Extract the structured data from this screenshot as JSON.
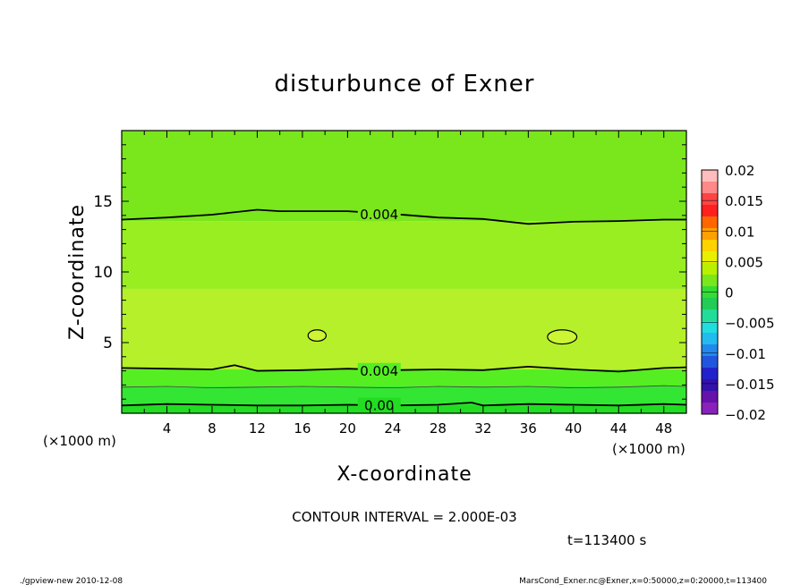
{
  "chart_data": {
    "type": "heatmap",
    "title": "disturbunce of Exner",
    "xlabel": "X-coordinate",
    "ylabel": "Z-coordinate",
    "x_unit": "(×1000 m)",
    "x_unit_right": "(×1000 m)",
    "xlim": [
      0,
      50
    ],
    "ylim": [
      0,
      20
    ],
    "x_ticks": [
      4,
      8,
      12,
      16,
      20,
      24,
      28,
      32,
      36,
      40,
      44,
      48
    ],
    "y_ticks": [
      5,
      10,
      15
    ],
    "z_bands": [
      {
        "z0": 0.0,
        "z1": 0.6,
        "value_range": [
          0.0,
          0.0025
        ],
        "color": "#22dd22"
      },
      {
        "z0": 0.6,
        "z1": 1.9,
        "value_range": [
          0.0025,
          0.003
        ],
        "color": "#33e633"
      },
      {
        "z0": 1.9,
        "z1": 3.1,
        "value_range": [
          0.003,
          0.004
        ],
        "color": "#55ee22"
      },
      {
        "z0": 3.1,
        "z1": 8.8,
        "value_range": [
          0.004,
          0.005
        ],
        "color": "#b5f02a"
      },
      {
        "z0": 8.8,
        "z1": 13.6,
        "value_range": [
          0.004,
          0.005
        ],
        "color": "#99ee22"
      },
      {
        "z0": 13.6,
        "z1": 20.0,
        "value_range": [
          0.003,
          0.004
        ],
        "color": "#7ae61c"
      }
    ],
    "contours": [
      {
        "label": "0.004",
        "level": 0.004,
        "x": [
          0,
          4,
          8,
          12,
          14,
          16,
          20,
          24,
          28,
          32,
          36,
          40,
          44,
          48,
          50
        ],
        "z": [
          13.7,
          13.85,
          14.05,
          14.4,
          14.3,
          14.3,
          14.3,
          14.1,
          13.85,
          13.75,
          13.4,
          13.55,
          13.6,
          13.7,
          13.7
        ]
      },
      {
        "label": "0.004",
        "level": 0.004,
        "x": [
          0,
          4,
          8,
          10,
          12,
          16,
          20,
          24,
          28,
          32,
          36,
          40,
          44,
          48,
          50
        ],
        "z": [
          3.2,
          3.15,
          3.1,
          3.4,
          3.0,
          3.05,
          3.15,
          3.05,
          3.1,
          3.05,
          3.3,
          3.1,
          2.95,
          3.2,
          3.25
        ]
      },
      {
        "label": "0.00",
        "level": 0.002,
        "x": [
          0,
          4,
          8,
          12,
          16,
          20,
          24,
          28,
          31,
          32,
          36,
          40,
          44,
          48,
          50
        ],
        "z": [
          0.55,
          0.65,
          0.6,
          0.55,
          0.55,
          0.6,
          0.55,
          0.6,
          0.75,
          0.55,
          0.65,
          0.6,
          0.55,
          0.65,
          0.6
        ]
      }
    ],
    "thin_contours": [
      {
        "x": [
          0,
          4,
          8,
          12,
          16,
          20,
          24,
          28,
          32,
          36,
          40,
          44,
          48,
          50
        ],
        "z": [
          1.85,
          1.9,
          1.8,
          1.85,
          1.9,
          1.85,
          1.8,
          1.9,
          1.85,
          1.9,
          1.8,
          1.85,
          1.95,
          1.9
        ]
      }
    ],
    "closed_contours": [
      {
        "cx": 17.3,
        "cz": 5.5,
        "rx": 0.8,
        "rz": 0.4
      },
      {
        "cx": 39.0,
        "cz": 5.4,
        "rx": 1.3,
        "rz": 0.5
      }
    ],
    "colorbar": {
      "labels": [
        "0.02",
        "0.015",
        "0.01",
        "0.005",
        "0",
        "−0.005",
        "−0.01",
        "−0.015",
        "−0.02"
      ],
      "colors_top_to_bottom": [
        "#ffbdbd",
        "#ff8888",
        "#ff4444",
        "#ff2020",
        "#ff6600",
        "#ffa000",
        "#ffd200",
        "#e8f000",
        "#b8f000",
        "#7ae61c",
        "#33dd33",
        "#22cc55",
        "#22dd99",
        "#22dddd",
        "#22bbee",
        "#2288ee",
        "#2255dd",
        "#2222cc",
        "#3311aa",
        "#6611aa",
        "#8822bb"
      ]
    },
    "grid": false
  },
  "footer": {
    "contour_interval": "CONTOUR INTERVAL = 2.000E-03",
    "time": "t=113400  s",
    "program": "./gpview-new  2010-12-08",
    "source": "MarsCond_Exner.nc@Exner,x=0:50000,z=0:20000,t=113400"
  }
}
